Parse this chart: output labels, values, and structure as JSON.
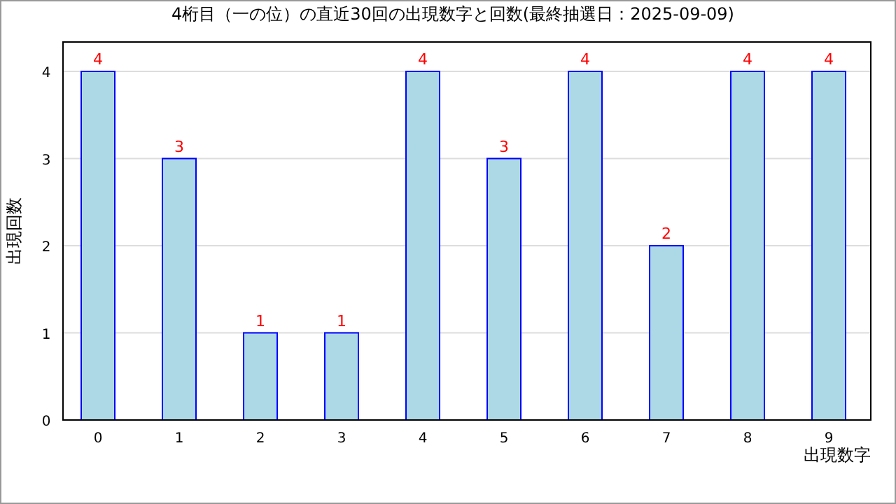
{
  "chart_data": {
    "type": "bar",
    "title": "4桁目（一の位）の直近30回の出現数字と回数(最終抽選日：2025-09-09)",
    "xlabel": "出現数字",
    "ylabel": "出現回数",
    "categories": [
      "0",
      "1",
      "2",
      "3",
      "4",
      "5",
      "6",
      "7",
      "8",
      "9"
    ],
    "values": [
      4,
      3,
      1,
      1,
      4,
      3,
      4,
      2,
      4,
      4
    ],
    "color": "#add8e6",
    "ylim": [
      0,
      4
    ],
    "yticks": [
      0,
      1,
      2,
      3,
      4
    ],
    "grid": "y",
    "data_labels": true
  }
}
